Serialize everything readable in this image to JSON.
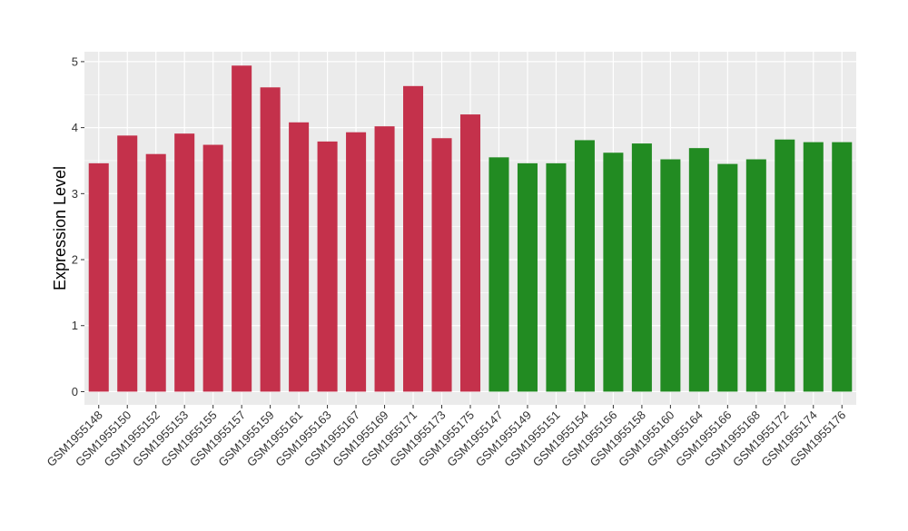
{
  "chart_data": {
    "type": "bar",
    "title": "",
    "xlabel": "",
    "ylabel": "Expression Level",
    "ylim": [
      -0.2,
      5.15
    ],
    "yticks": [
      0,
      1,
      2,
      3,
      4,
      5
    ],
    "grid": true,
    "legend": "none",
    "categories": [
      "GSM1955148",
      "GSM1955150",
      "GSM1955152",
      "GSM1955153",
      "GSM1955155",
      "GSM1955157",
      "GSM1955159",
      "GSM1955161",
      "GSM1955163",
      "GSM1955167",
      "GSM1955169",
      "GSM1955171",
      "GSM1955173",
      "GSM1955175",
      "GSM1955147",
      "GSM1955149",
      "GSM1955151",
      "GSM1955154",
      "GSM1955156",
      "GSM1955158",
      "GSM1955160",
      "GSM1955164",
      "GSM1955166",
      "GSM1955168",
      "GSM1955172",
      "GSM1955174",
      "GSM1955176"
    ],
    "values": [
      3.46,
      3.88,
      3.6,
      3.91,
      3.74,
      4.94,
      4.61,
      4.08,
      3.79,
      3.93,
      4.02,
      4.63,
      3.84,
      4.2,
      3.55,
      3.46,
      3.46,
      3.81,
      3.62,
      3.76,
      3.52,
      3.69,
      3.45,
      3.52,
      3.82,
      3.78,
      3.78
    ],
    "bar_colors": [
      "#c4314b",
      "#c4314b",
      "#c4314b",
      "#c4314b",
      "#c4314b",
      "#c4314b",
      "#c4314b",
      "#c4314b",
      "#c4314b",
      "#c4314b",
      "#c4314b",
      "#c4314b",
      "#c4314b",
      "#c4314b",
      "#228b22",
      "#228b22",
      "#228b22",
      "#228b22",
      "#228b22",
      "#228b22",
      "#228b22",
      "#228b22",
      "#228b22",
      "#228b22",
      "#228b22",
      "#228b22",
      "#228b22"
    ],
    "panel_background": "#ebebeb",
    "grid_color": "#ffffff"
  }
}
